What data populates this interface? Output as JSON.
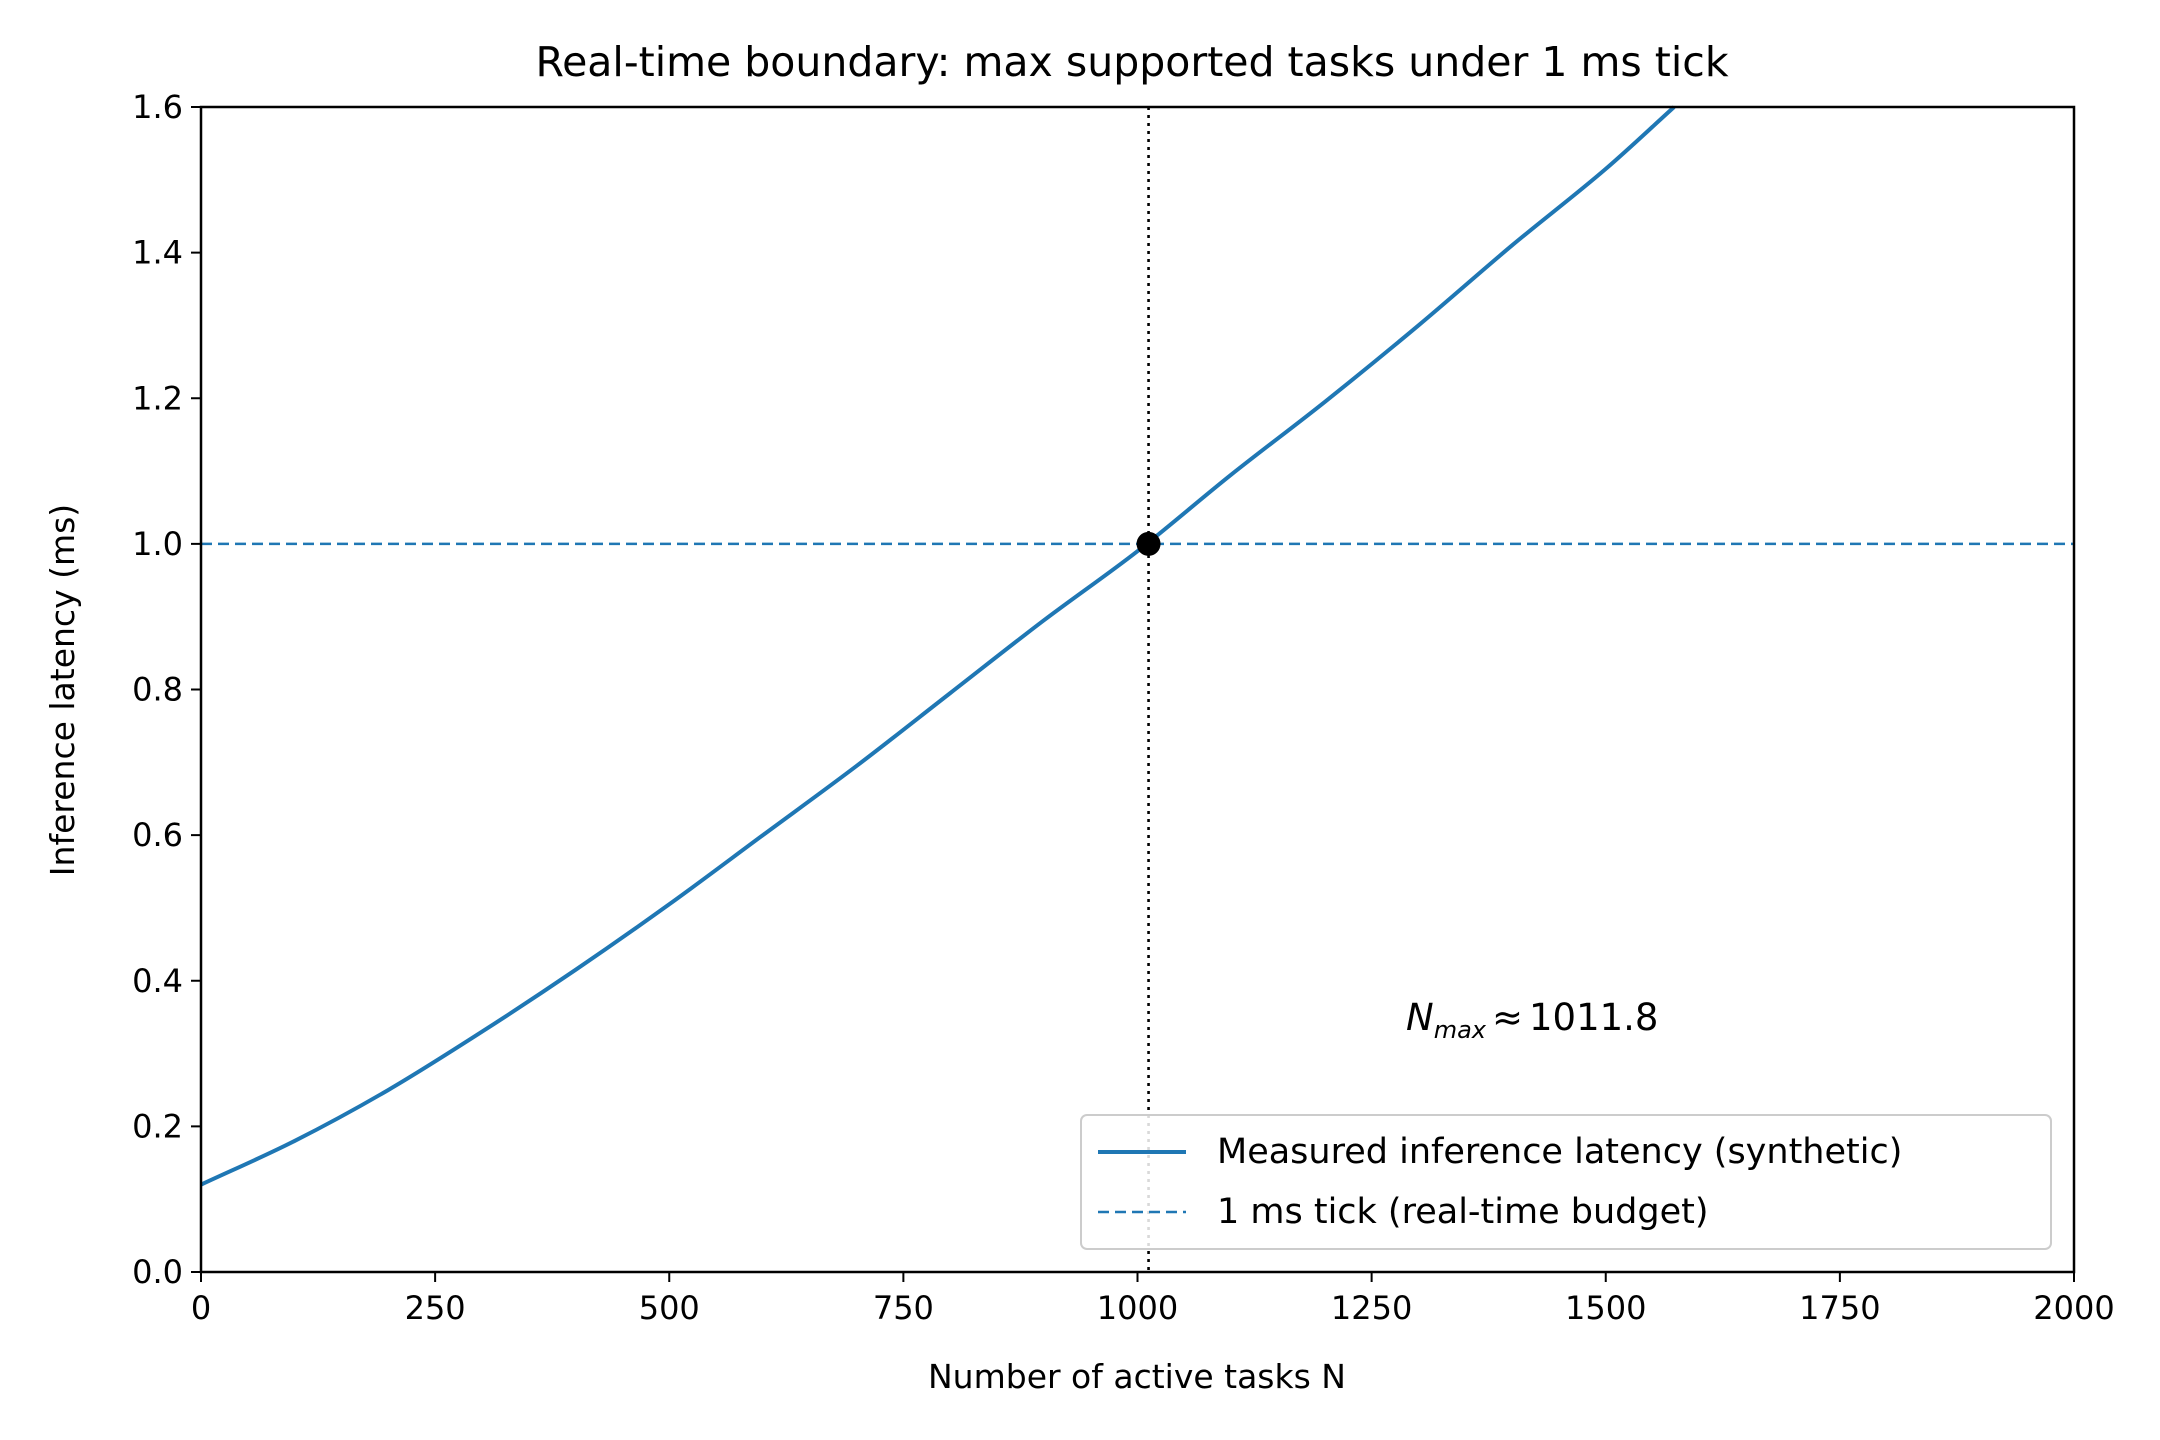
{
  "chart_data": {
    "type": "line",
    "title": "Real-time boundary: max supported tasks under 1 ms tick",
    "xlabel": "Number of active tasks N",
    "ylabel": "Inference latency (ms)",
    "xlim": [
      0,
      2000
    ],
    "ylim": [
      0,
      1.6
    ],
    "x_ticks": [
      "0",
      "250",
      "500",
      "750",
      "1000",
      "1250",
      "1500",
      "1750",
      "2000"
    ],
    "y_ticks": [
      "0.0",
      "0.2",
      "0.4",
      "0.6",
      "0.8",
      "1.0",
      "1.2",
      "1.4",
      "1.6"
    ],
    "grid": false,
    "legend_position": "lower right",
    "series": [
      {
        "name": "Measured inference latency (synthetic)",
        "style": "solid",
        "color": "#1f77b4",
        "x": [
          0,
          100,
          200,
          300,
          400,
          500,
          600,
          700,
          800,
          900,
          1000,
          1100,
          1200,
          1300,
          1400,
          1500,
          1573
        ],
        "y": [
          0.12,
          0.18,
          0.25,
          0.33,
          0.415,
          0.505,
          0.6,
          0.695,
          0.795,
          0.895,
          0.99,
          1.095,
          1.195,
          1.3,
          1.41,
          1.515,
          1.6
        ]
      },
      {
        "name": "1 ms tick (real-time budget)",
        "style": "dashed",
        "color": "#1f77b4",
        "x": [
          0,
          2000
        ],
        "y": [
          1.0,
          1.0
        ]
      }
    ],
    "vline": {
      "x": 1011.8,
      "style": "dotted",
      "color": "#000000"
    },
    "marker": {
      "x": 1011.8,
      "y": 1.0,
      "color": "#000000"
    },
    "annotation": {
      "symbol": "N",
      "subscript": "max",
      "approx": "≈",
      "value": "1011.8",
      "x": 1300,
      "y": 0.33
    }
  }
}
